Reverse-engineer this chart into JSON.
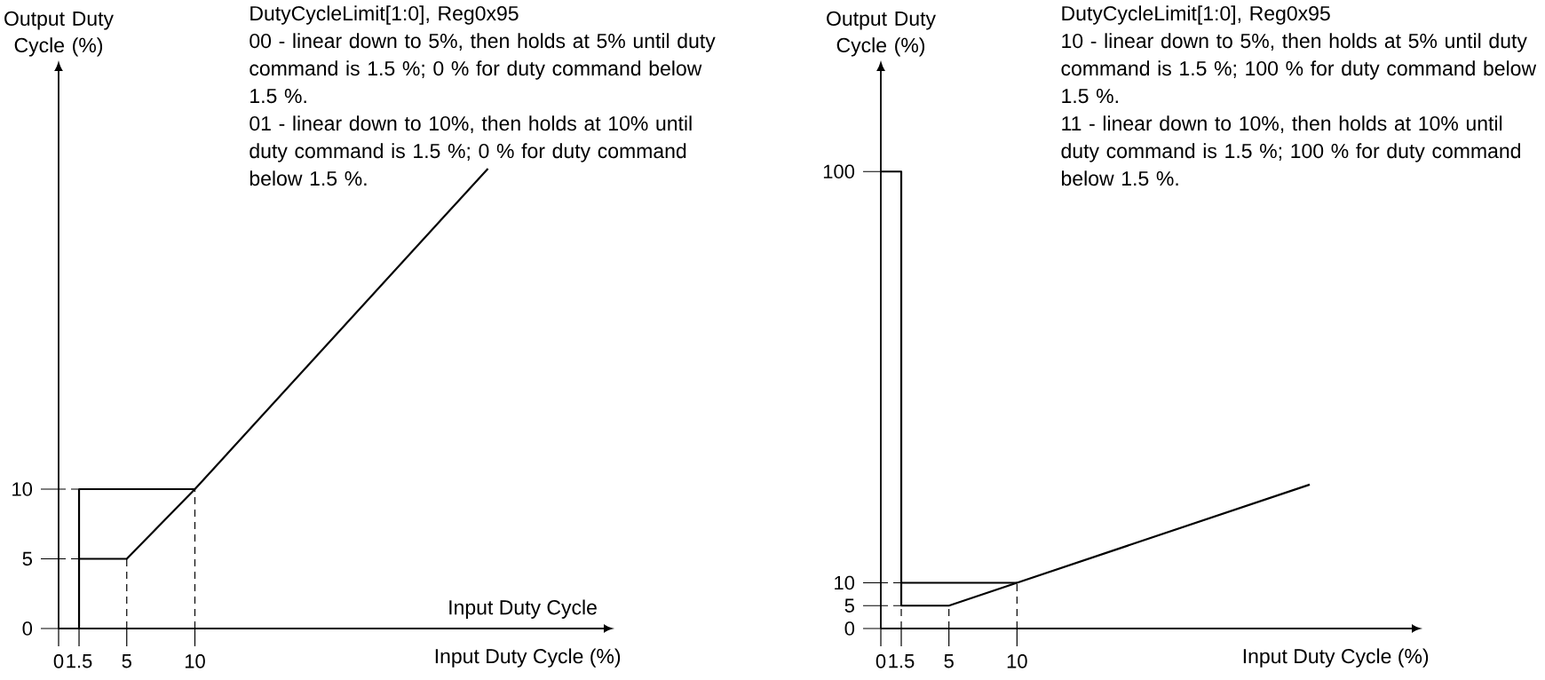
{
  "chart_data": [
    {
      "type": "line",
      "title": "DutyCycleLimit[1:0], Reg0x95",
      "subtitle": "Input Duty Cycle",
      "ylabel": "Output Duty Cycle (%)",
      "xlabel": "Input Duty Cycle (%)",
      "annotations": [
        "00 - linear down to 5%, then holds at 5% until duty command is 1.5 %; 0 % for duty command below 1.5 %.",
        "01 -  linear down to 10%, then holds at 10% until duty command is 1.5 %; 0 % for duty command below 1.5 %."
      ],
      "series": [
        {
          "color": "#000000",
          "x": [
            1.5,
            1.5,
            10
          ],
          "values": [
            0,
            10,
            10
          ]
        },
        {
          "color": "#000000",
          "x": [
            1.5,
            5,
            10,
            31.5
          ],
          "values": [
            5,
            5,
            10,
            33
          ]
        },
        {
          "color": "#000000",
          "line_style": "dashed",
          "x": [
            5,
            5
          ],
          "values": [
            0,
            5
          ]
        },
        {
          "color": "#000000",
          "line_style": "dashed",
          "x": [
            10,
            10
          ],
          "values": [
            0,
            10
          ]
        },
        {
          "color": "#000000",
          "line_style": "dashed",
          "x": [
            0,
            1.5
          ],
          "values": [
            5,
            5
          ]
        },
        {
          "color": "#000000",
          "line_style": "dashed",
          "x": [
            0,
            1.5
          ],
          "values": [
            10,
            10
          ]
        }
      ],
      "xlim": [
        0,
        40
      ],
      "ylim": [
        0,
        40
      ],
      "xticks": [
        0,
        1.5,
        5,
        10
      ],
      "yticks": [
        0,
        5,
        10
      ]
    },
    {
      "type": "line",
      "title": "DutyCycleLimit[1:0], Reg0x95",
      "ylabel": "Output Duty Cycle (%)",
      "xlabel": "Input Duty Cycle (%)",
      "annotations": [
        "10 - linear down to 5%, then holds at 5% until duty command is 1.5 %; 100 % for duty command below 1.5 %.",
        "11 -  linear down to 10%, then holds at 10% until duty command is 1.5 %; 100 % for duty command below 1.5 %."
      ],
      "series": [
        {
          "color": "#000000",
          "x": [
            1.5,
            10
          ],
          "values": [
            10,
            10
          ]
        },
        {
          "color": "#000000",
          "x": [
            0,
            1.5,
            1.5,
            5,
            10,
            31.5
          ],
          "values": [
            100,
            100,
            5,
            5,
            10,
            31.5
          ]
        },
        {
          "color": "#000000",
          "line_style": "dashed",
          "x": [
            1.5,
            1.5
          ],
          "values": [
            0,
            5
          ]
        },
        {
          "color": "#000000",
          "line_style": "dashed",
          "x": [
            5,
            5
          ],
          "values": [
            0,
            5
          ]
        },
        {
          "color": "#000000",
          "line_style": "dashed",
          "x": [
            10,
            10
          ],
          "values": [
            0,
            10
          ]
        },
        {
          "color": "#000000",
          "line_style": "dashed",
          "x": [
            0,
            1.5
          ],
          "values": [
            5,
            5
          ]
        },
        {
          "color": "#000000",
          "line_style": "dashed",
          "x": [
            0,
            1.5
          ],
          "values": [
            10,
            10
          ]
        }
      ],
      "xlim": [
        0,
        39
      ],
      "ylim": [
        0,
        122
      ],
      "xticks": [
        0,
        1.5,
        5,
        10
      ],
      "yticks": [
        0,
        5,
        10,
        100
      ]
    }
  ]
}
